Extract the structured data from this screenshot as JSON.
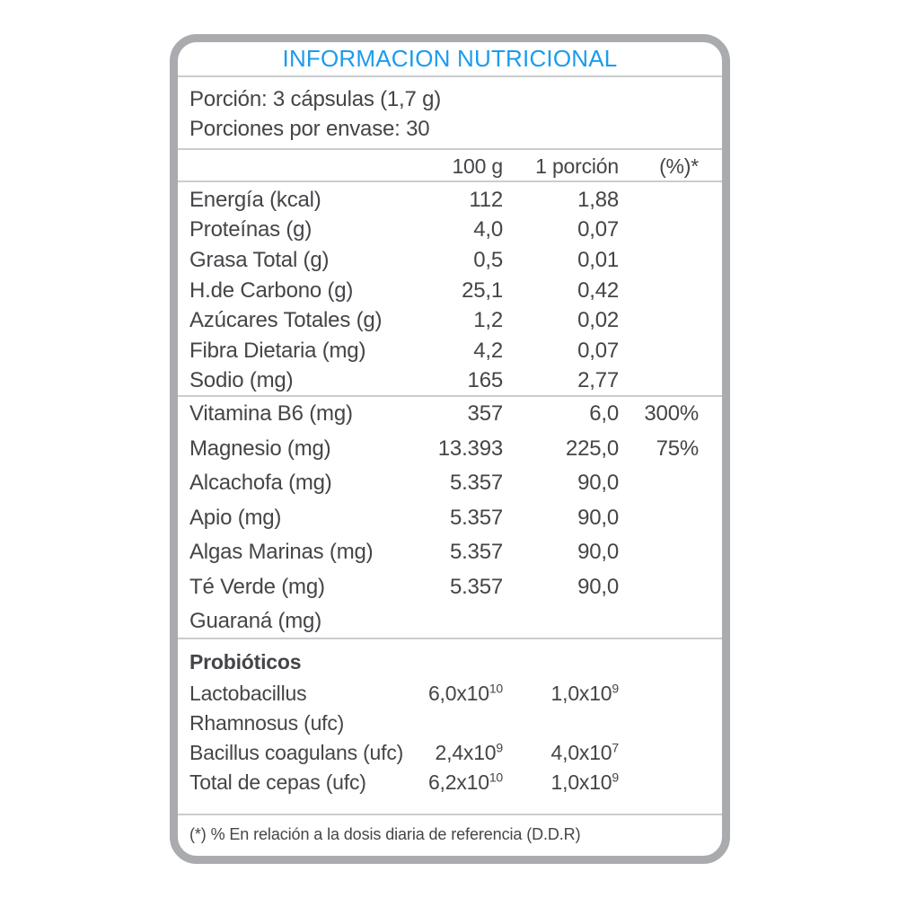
{
  "title": "INFORMACION NUTRICIONAL",
  "accent_color": "#1b9cec",
  "text_color": "#454549",
  "border_color": "#a9abae",
  "serving": {
    "portion": "Porción: 3 cápsulas (1,7 g)",
    "per_container": "Porciones por envase: 30"
  },
  "columns": {
    "per_100g": "100 g",
    "per_portion": "1 porción",
    "pct_ddr": "(%)*"
  },
  "nutrients": [
    {
      "label": "Energía (kcal)",
      "per100": "112",
      "portion": "1,88",
      "pct": ""
    },
    {
      "label": "Proteínas (g)",
      "per100": "4,0",
      "portion": "0,07",
      "pct": ""
    },
    {
      "label": "Grasa Total (g)",
      "per100": "0,5",
      "portion": "0,01",
      "pct": ""
    },
    {
      "label": "H.de Carbono (g)",
      "per100": "25,1",
      "portion": "0,42",
      "pct": ""
    },
    {
      "label": "Azúcares Totales (g)",
      "per100": "1,2",
      "portion": "0,02",
      "pct": ""
    },
    {
      "label": "Fibra Dietaria (mg)",
      "per100": "4,2",
      "portion": "0,07",
      "pct": ""
    },
    {
      "label": "Sodio (mg)",
      "per100": "165",
      "portion": "2,77",
      "pct": ""
    }
  ],
  "micronutrients": [
    {
      "label": "Vitamina B6 (mg)",
      "per100": "357",
      "portion": "6,0",
      "pct": "300%"
    },
    {
      "label": "Magnesio (mg)",
      "per100": "13.393",
      "portion": "225,0",
      "pct": "75%"
    },
    {
      "label": "Alcachofa (mg)",
      "per100": "5.357",
      "portion": "90,0",
      "pct": ""
    },
    {
      "label": "Apio (mg)",
      "per100": "5.357",
      "portion": "90,0",
      "pct": ""
    },
    {
      "label": "Algas Marinas (mg)",
      "per100": "5.357",
      "portion": "90,0",
      "pct": ""
    },
    {
      "label": "Té Verde (mg)",
      "per100": "5.357",
      "portion": "90,0",
      "pct": ""
    },
    {
      "label": "Guaraná (mg)",
      "per100": "",
      "portion": "",
      "pct": ""
    }
  ],
  "probiotics": {
    "heading": "Probióticos",
    "rows": [
      {
        "label": "Lactobacillus",
        "per100_base": "6,0x10",
        "per100_exp": "10",
        "portion_base": "1,0x10",
        "portion_exp": "9"
      },
      {
        "label": "Rhamnosus (ufc)",
        "per100_base": "",
        "per100_exp": "",
        "portion_base": "",
        "portion_exp": ""
      },
      {
        "label": "Bacillus coagulans (ufc)",
        "per100_base": "2,4x10",
        "per100_exp": "9",
        "portion_base": "4,0x10",
        "portion_exp": "7"
      },
      {
        "label": "Total de cepas (ufc)",
        "per100_base": "6,2x10",
        "per100_exp": "10",
        "portion_base": "1,0x10",
        "portion_exp": "9"
      }
    ]
  },
  "footnote": "(*) % En relación a la dosis diaria de referencia (D.D.R)"
}
